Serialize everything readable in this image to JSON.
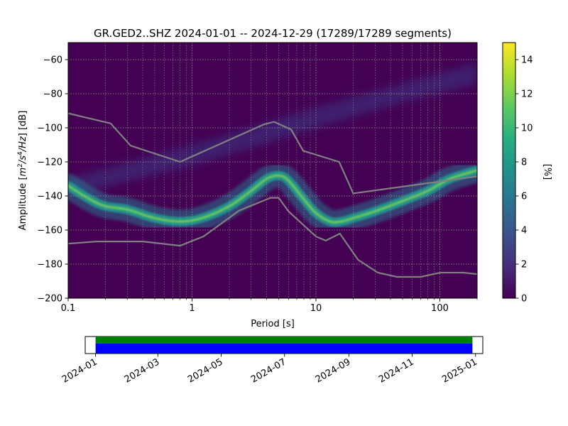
{
  "chart_data": [
    {
      "type": "heatmap",
      "title": "GR.GED2..SHZ   2024-01-01 -- 2024-12-29  (17289/17289 segments)",
      "xlabel": "Period [s]",
      "ylabel": "Amplitude [m²/s⁴/Hz] [dB]",
      "x_scale": "log",
      "xlim": [
        0.1,
        200
      ],
      "ylim": [
        -200,
        -50
      ],
      "x_ticks": [
        0.1,
        1,
        10,
        100
      ],
      "x_tick_labels": [
        "0.1",
        "1",
        "10",
        "100"
      ],
      "y_ticks": [
        -60,
        -80,
        -100,
        -120,
        -140,
        -160,
        -180,
        -200
      ],
      "y_tick_labels": [
        "−60",
        "−80",
        "−100",
        "−120",
        "−140",
        "−160",
        "−180",
        "−200"
      ],
      "grid": true,
      "colormap": "viridis",
      "colorbar": {
        "label": "[%]",
        "range": [
          0,
          15
        ],
        "ticks": [
          0,
          2,
          4,
          6,
          8,
          10,
          12,
          14
        ],
        "tick_labels": [
          "0",
          "2",
          "4",
          "6",
          "8",
          "10",
          "12",
          "14"
        ]
      },
      "psd_mode": {
        "period": [
          0.1,
          0.15,
          0.2,
          0.3,
          0.5,
          0.8,
          1.2,
          2,
          3,
          4,
          5,
          6,
          8,
          10,
          13,
          16,
          20,
          30,
          50,
          80,
          120,
          200
        ],
        "db": [
          -134,
          -142,
          -146,
          -148,
          -153,
          -155,
          -153,
          -146,
          -137,
          -130,
          -128,
          -131,
          -142,
          -150,
          -155,
          -155,
          -153,
          -149,
          -143,
          -137,
          -130,
          -125
        ]
      },
      "noise_model_high": {
        "period": [
          0.1,
          0.22,
          0.32,
          0.8,
          3.8,
          4.6,
          6.3,
          7.9,
          15.4,
          20,
          354.8
        ],
        "db": [
          -91.5,
          -97.4,
          -110.5,
          -120,
          -98,
          -96.5,
          -101,
          -113.5,
          -120,
          -138.5,
          -126
        ]
      },
      "noise_model_low": {
        "period": [
          0.1,
          0.17,
          0.4,
          0.8,
          1.24,
          2.4,
          4.3,
          5.0,
          6.0,
          10,
          12,
          15.6,
          21.9,
          31.6,
          45,
          70,
          101,
          154,
          328
        ],
        "db": [
          -168,
          -166.7,
          -166.7,
          -169.2,
          -163.7,
          -148.6,
          -141.1,
          -141.1,
          -149,
          -163.8,
          -166.2,
          -162.1,
          -177.5,
          -185,
          -187.5,
          -187.5,
          -185,
          -185,
          -187.5
        ]
      }
    },
    {
      "type": "bar",
      "x_ticks": [
        "2024-01",
        "2024-03",
        "2024-05",
        "2024-07",
        "2024-09",
        "2024-11",
        "2025-01"
      ],
      "coverage": [
        {
          "start": "2024-01-01",
          "end": "2024-12-29",
          "color": "#008000"
        },
        {
          "start": "2024-01-01",
          "end": "2024-12-29",
          "color": "#0000ff"
        }
      ]
    }
  ]
}
